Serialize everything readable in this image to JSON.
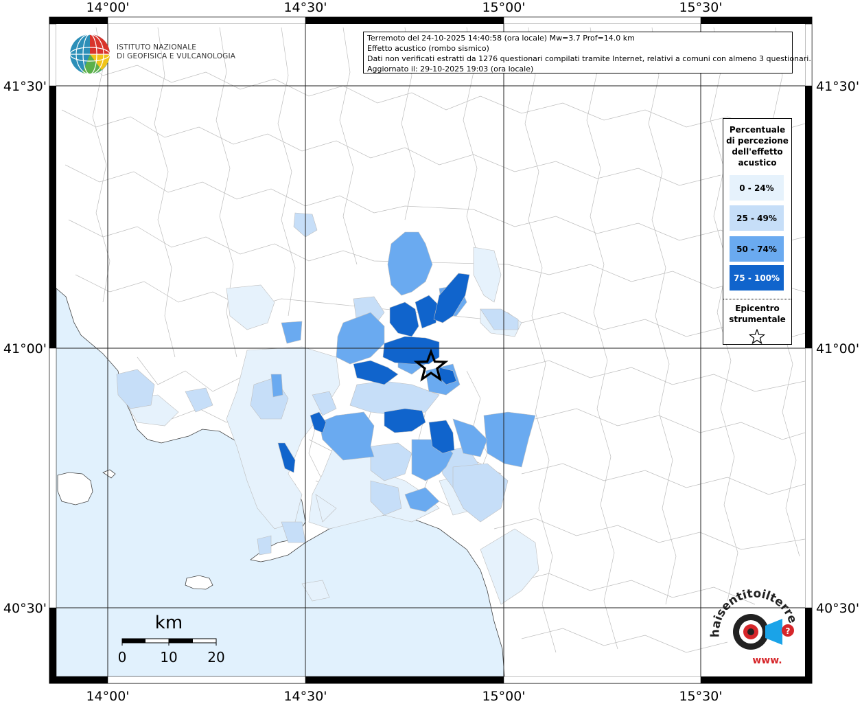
{
  "header": {
    "line1": "Terremoto del 24-10-2025 14:40:58 (ora locale) Mw=3.7 Prof=14.0 km",
    "line2": "Effetto acustico (rombo sismico)",
    "line3": "Dati non verificati estratti da 1276 questionari compilati tramite Internet, relativi a comuni con almeno 3 questionari.",
    "line4": "Aggiornato il: 29-10-2025 19:03 (ora locale)"
  },
  "ingv": {
    "line1": "ISTITUTO NAZIONALE",
    "line2": "DI GEOFISICA E VULCANOLOGIA"
  },
  "axes": {
    "top": [
      "14°00'",
      "14°30'",
      "15°00'",
      "15°30'"
    ],
    "bottom": [
      "14°00'",
      "14°30'",
      "15°00'",
      "15°30'"
    ],
    "left": [
      "41°30'",
      "41°00'",
      "40°30'"
    ],
    "right": [
      "41°30'",
      "41°00'",
      "40°30'"
    ]
  },
  "legend": {
    "title": [
      "Percentuale",
      "di percezione",
      "dell'effetto",
      "acustico"
    ],
    "items": [
      {
        "label": "0 - 24%",
        "color": "#e6f2fc"
      },
      {
        "label": "25 - 49%",
        "color": "#c6def8"
      },
      {
        "label": "50 - 74%",
        "color": "#6aaaf0"
      },
      {
        "label": "75 - 100%",
        "color": "#1064cc"
      }
    ],
    "epicenter_title": [
      "Epicentro",
      "strumentale"
    ],
    "epicenter_icon": "star-outline-icon"
  },
  "scalebar": {
    "unit": "km",
    "ticks": [
      "0",
      "10",
      "20"
    ]
  },
  "watermark": {
    "text_arc": "haisentitoilterremoto.it",
    "text_www": "www.",
    "icon": "ear-target-icon"
  },
  "colors": {
    "sea": "#e1f1fd",
    "land": "#ffffff",
    "boundary": "#bdbdbd",
    "grid": "#000000"
  }
}
